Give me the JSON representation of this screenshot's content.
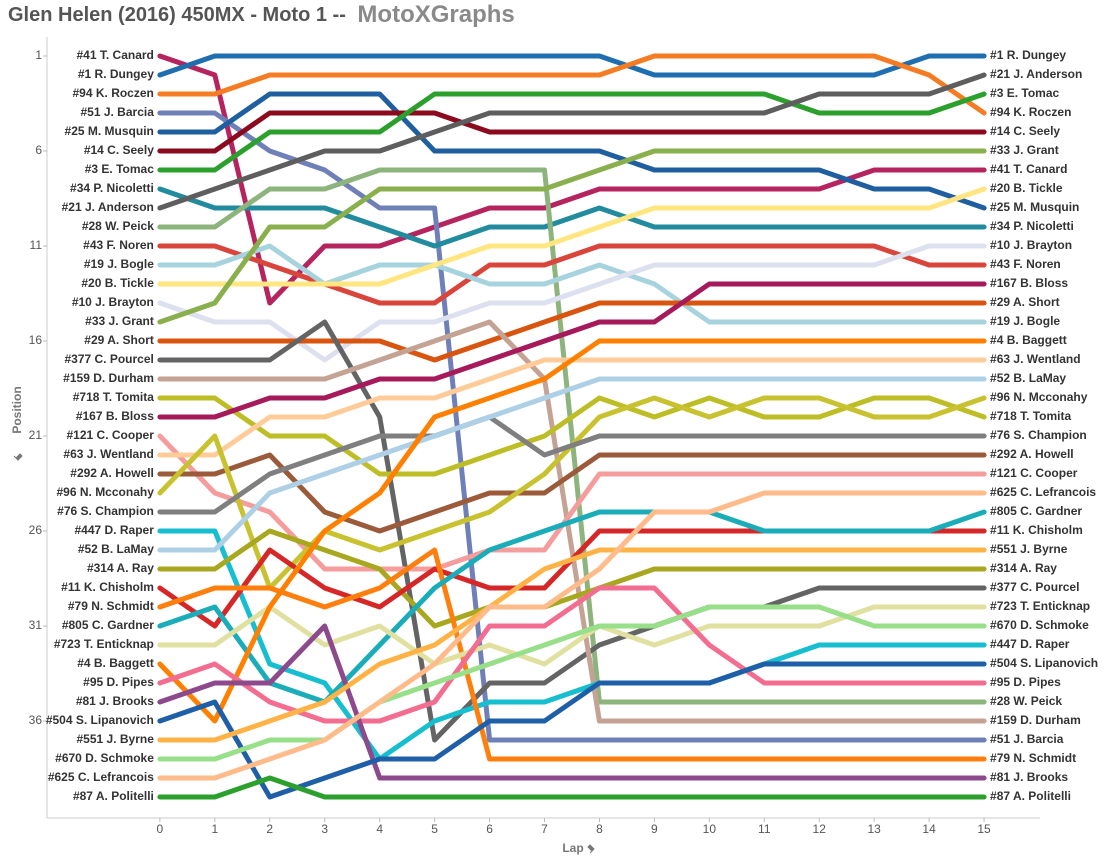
{
  "chart_data": {
    "type": "line",
    "title": "Glen Helen (2016) 450MX - Moto 1 --",
    "subtitle": "MotoXGraphs",
    "x_label": "Lap",
    "y_label": "Position",
    "x": [
      0,
      1,
      2,
      3,
      4,
      5,
      6,
      7,
      8,
      9,
      10,
      11,
      12,
      13,
      14,
      15
    ],
    "xlim": [
      -2,
      16
    ],
    "xticks": [
      0,
      1,
      2,
      3,
      4,
      5,
      6,
      7,
      8,
      9,
      10,
      11,
      12,
      13,
      14,
      15
    ],
    "ylim": [
      0,
      41
    ],
    "yticks": [
      1,
      6,
      11,
      16,
      21,
      26,
      31,
      36
    ],
    "y_inverted": true,
    "grid": false,
    "series": [
      {
        "name": "#41 T. Canard",
        "color": "#b5245e",
        "values": [
          1,
          2,
          14,
          11,
          11,
          10,
          9,
          9,
          8,
          8,
          8,
          8,
          8,
          7,
          7,
          7
        ]
      },
      {
        "name": "#1 R. Dungey",
        "color": "#1f6eb0",
        "values": [
          2,
          1,
          1,
          1,
          1,
          1,
          1,
          1,
          1,
          2,
          2,
          2,
          2,
          2,
          1,
          1
        ]
      },
      {
        "name": "#94 K. Roczen",
        "color": "#f57c22",
        "values": [
          3,
          3,
          2,
          2,
          2,
          2,
          2,
          2,
          2,
          1,
          1,
          1,
          1,
          1,
          2,
          4
        ]
      },
      {
        "name": "#51 J. Barcia",
        "color": "#6f80b8",
        "values": [
          4,
          4,
          6,
          7,
          9,
          9,
          37,
          37,
          37,
          37,
          37,
          37,
          37,
          37,
          37,
          37
        ]
      },
      {
        "name": "#25 M. Musquin",
        "color": "#1f5fa0",
        "values": [
          5,
          5,
          3,
          3,
          3,
          6,
          6,
          6,
          6,
          7,
          7,
          7,
          7,
          8,
          8,
          9
        ]
      },
      {
        "name": "#14 C. Seely",
        "color": "#8b0a1e",
        "values": [
          6,
          6,
          4,
          4,
          4,
          4,
          5,
          5,
          5,
          5,
          5,
          5,
          5,
          5,
          5,
          5
        ]
      },
      {
        "name": "#3 E. Tomac",
        "color": "#2ca02c",
        "values": [
          7,
          7,
          5,
          5,
          5,
          3,
          3,
          3,
          3,
          3,
          3,
          3,
          4,
          4,
          4,
          3
        ]
      },
      {
        "name": "#34 P. Nicoletti",
        "color": "#238b9e",
        "values": [
          8,
          9,
          9,
          9,
          10,
          11,
          10,
          10,
          9,
          10,
          10,
          10,
          10,
          10,
          10,
          10
        ]
      },
      {
        "name": "#21 J. Anderson",
        "color": "#5e5e5e",
        "values": [
          9,
          8,
          7,
          6,
          6,
          5,
          4,
          4,
          4,
          4,
          4,
          4,
          3,
          3,
          3,
          2
        ]
      },
      {
        "name": "#28 W. Peick",
        "color": "#8db47d",
        "values": [
          10,
          10,
          8,
          8,
          7,
          7,
          7,
          7,
          35,
          35,
          35,
          35,
          35,
          35,
          35,
          35
        ]
      },
      {
        "name": "#43 F. Noren",
        "color": "#d9453b",
        "values": [
          11,
          11,
          12,
          13,
          14,
          14,
          12,
          12,
          11,
          11,
          11,
          11,
          11,
          11,
          12,
          12
        ]
      },
      {
        "name": "#19 J. Bogle",
        "color": "#a6d3dd",
        "values": [
          12,
          12,
          11,
          13,
          12,
          12,
          13,
          13,
          12,
          13,
          15,
          15,
          15,
          15,
          15,
          15
        ]
      },
      {
        "name": "#20 B. Tickle",
        "color": "#ffe680",
        "values": [
          13,
          13,
          13,
          13,
          13,
          12,
          11,
          11,
          10,
          9,
          9,
          9,
          9,
          9,
          9,
          8
        ]
      },
      {
        "name": "#10 J. Brayton",
        "color": "#dde0ee",
        "values": [
          14,
          15,
          15,
          17,
          15,
          15,
          14,
          14,
          13,
          12,
          12,
          12,
          12,
          12,
          11,
          11
        ]
      },
      {
        "name": "#33 J. Grant",
        "color": "#8ab04e",
        "values": [
          15,
          14,
          10,
          10,
          8,
          8,
          8,
          8,
          7,
          6,
          6,
          6,
          6,
          6,
          6,
          6
        ]
      },
      {
        "name": "#29 A. Short",
        "color": "#d9540f",
        "values": [
          16,
          16,
          16,
          16,
          16,
          17,
          16,
          15,
          14,
          14,
          14,
          14,
          14,
          14,
          14,
          14
        ]
      },
      {
        "name": "#377 C. Pourcel",
        "color": "#646464",
        "values": [
          17,
          17,
          17,
          15,
          20,
          37,
          34,
          34,
          32,
          31,
          30,
          30,
          29,
          29,
          29,
          29
        ]
      },
      {
        "name": "#159 D. Durham",
        "color": "#c4a395",
        "values": [
          18,
          18,
          18,
          18,
          17,
          16,
          15,
          18,
          36,
          36,
          36,
          36,
          36,
          36,
          36,
          36
        ]
      },
      {
        "name": "#718 T. Tomita",
        "color": "#bdbd26",
        "values": [
          19,
          19,
          21,
          21,
          23,
          23,
          22,
          21,
          19,
          20,
          19,
          20,
          20,
          19,
          19,
          20
        ]
      },
      {
        "name": "#167 B. Bloss",
        "color": "#a6195a",
        "values": [
          20,
          20,
          19,
          19,
          18,
          18,
          17,
          16,
          15,
          15,
          13,
          13,
          13,
          13,
          13,
          13
        ]
      },
      {
        "name": "#121 C. Cooper",
        "color": "#f59d9d",
        "values": [
          21,
          24,
          25,
          28,
          28,
          28,
          27,
          27,
          23,
          23,
          23,
          23,
          23,
          23,
          23,
          23
        ]
      },
      {
        "name": "#63 J. Wentland",
        "color": "#ffcc99",
        "values": [
          22,
          22,
          20,
          20,
          19,
          19,
          18,
          17,
          17,
          17,
          17,
          17,
          17,
          17,
          17,
          17
        ]
      },
      {
        "name": "#292 A. Howell",
        "color": "#9b5a3a",
        "values": [
          23,
          23,
          22,
          25,
          26,
          25,
          24,
          24,
          22,
          22,
          22,
          22,
          22,
          22,
          22,
          22
        ]
      },
      {
        "name": "#96 N. Mcconahy",
        "color": "#c9c230",
        "values": [
          24,
          21,
          29,
          26,
          27,
          26,
          25,
          23,
          20,
          19,
          20,
          19,
          19,
          20,
          20,
          19
        ]
      },
      {
        "name": "#76 S. Champion",
        "color": "#7f7f7f",
        "values": [
          25,
          25,
          23,
          22,
          21,
          21,
          20,
          22,
          21,
          21,
          21,
          21,
          21,
          21,
          21,
          21
        ]
      },
      {
        "name": "#447 D. Raper",
        "color": "#17becf",
        "values": [
          26,
          26,
          33,
          34,
          38,
          36,
          35,
          35,
          34,
          34,
          34,
          33,
          32,
          32,
          32,
          32
        ]
      },
      {
        "name": "#52 B. LaMay",
        "color": "#aed0e6",
        "values": [
          27,
          27,
          24,
          23,
          22,
          21,
          20,
          19,
          18,
          18,
          18,
          18,
          18,
          18,
          18,
          18
        ]
      },
      {
        "name": "#314 A. Ray",
        "color": "#a8a820",
        "values": [
          28,
          28,
          26,
          27,
          28,
          31,
          30,
          30,
          29,
          28,
          28,
          28,
          28,
          28,
          28,
          28
        ]
      },
      {
        "name": "#11 K. Chisholm",
        "color": "#d62728",
        "values": [
          29,
          31,
          27,
          29,
          30,
          28,
          29,
          29,
          26,
          26,
          26,
          26,
          26,
          26,
          26,
          26
        ]
      },
      {
        "name": "#79 N. Schmidt",
        "color": "#ff7f0e",
        "values": [
          30,
          29,
          29,
          30,
          29,
          27,
          38,
          38,
          38,
          38,
          38,
          38,
          38,
          38,
          38,
          38
        ]
      },
      {
        "name": "#805 C. Gardner",
        "color": "#1aacb8",
        "values": [
          31,
          30,
          34,
          35,
          32,
          29,
          27,
          26,
          25,
          25,
          25,
          26,
          26,
          26,
          26,
          25
        ]
      },
      {
        "name": "#723 T. Enticknap",
        "color": "#e0e0a0",
        "values": [
          32,
          32,
          30,
          32,
          31,
          33,
          32,
          33,
          31,
          32,
          31,
          31,
          31,
          30,
          30,
          30
        ]
      },
      {
        "name": "#4 B. Baggett",
        "color": "#ff8000",
        "values": [
          33,
          36,
          30,
          26,
          24,
          20,
          19,
          18,
          16,
          16,
          16,
          16,
          16,
          16,
          16,
          16
        ]
      },
      {
        "name": "#95 D. Pipes",
        "color": "#f26d8f",
        "values": [
          34,
          33,
          35,
          36,
          36,
          35,
          31,
          31,
          29,
          29,
          32,
          34,
          34,
          34,
          34,
          34
        ]
      },
      {
        "name": "#81 J. Brooks",
        "color": "#8c4a8c",
        "values": [
          35,
          34,
          34,
          31,
          39,
          39,
          39,
          39,
          39,
          39,
          39,
          39,
          39,
          39,
          39,
          39
        ]
      },
      {
        "name": "#504 S. Lipanovich",
        "color": "#1f5fa8",
        "values": [
          36,
          35,
          40,
          39,
          38,
          38,
          36,
          36,
          34,
          34,
          34,
          33,
          33,
          33,
          33,
          33
        ]
      },
      {
        "name": "#551 J. Byrne",
        "color": "#ffb347",
        "values": [
          37,
          37,
          36,
          35,
          33,
          32,
          30,
          28,
          27,
          27,
          27,
          27,
          27,
          27,
          27,
          27
        ]
      },
      {
        "name": "#670 D. Schmoke",
        "color": "#98df8a",
        "values": [
          38,
          38,
          37,
          37,
          35,
          34,
          33,
          32,
          31,
          31,
          30,
          30,
          30,
          31,
          31,
          31
        ]
      },
      {
        "name": "#625 C. Lefrancois",
        "color": "#ffbb8a",
        "values": [
          39,
          39,
          38,
          37,
          35,
          33,
          30,
          30,
          28,
          25,
          25,
          24,
          24,
          24,
          24,
          24
        ]
      },
      {
        "name": "#87 A. Politelli",
        "color": "#2ca02c",
        "values": [
          40,
          40,
          39,
          40,
          40,
          40,
          40,
          40,
          40,
          40,
          40,
          40,
          40,
          40,
          40,
          40
        ]
      }
    ]
  }
}
